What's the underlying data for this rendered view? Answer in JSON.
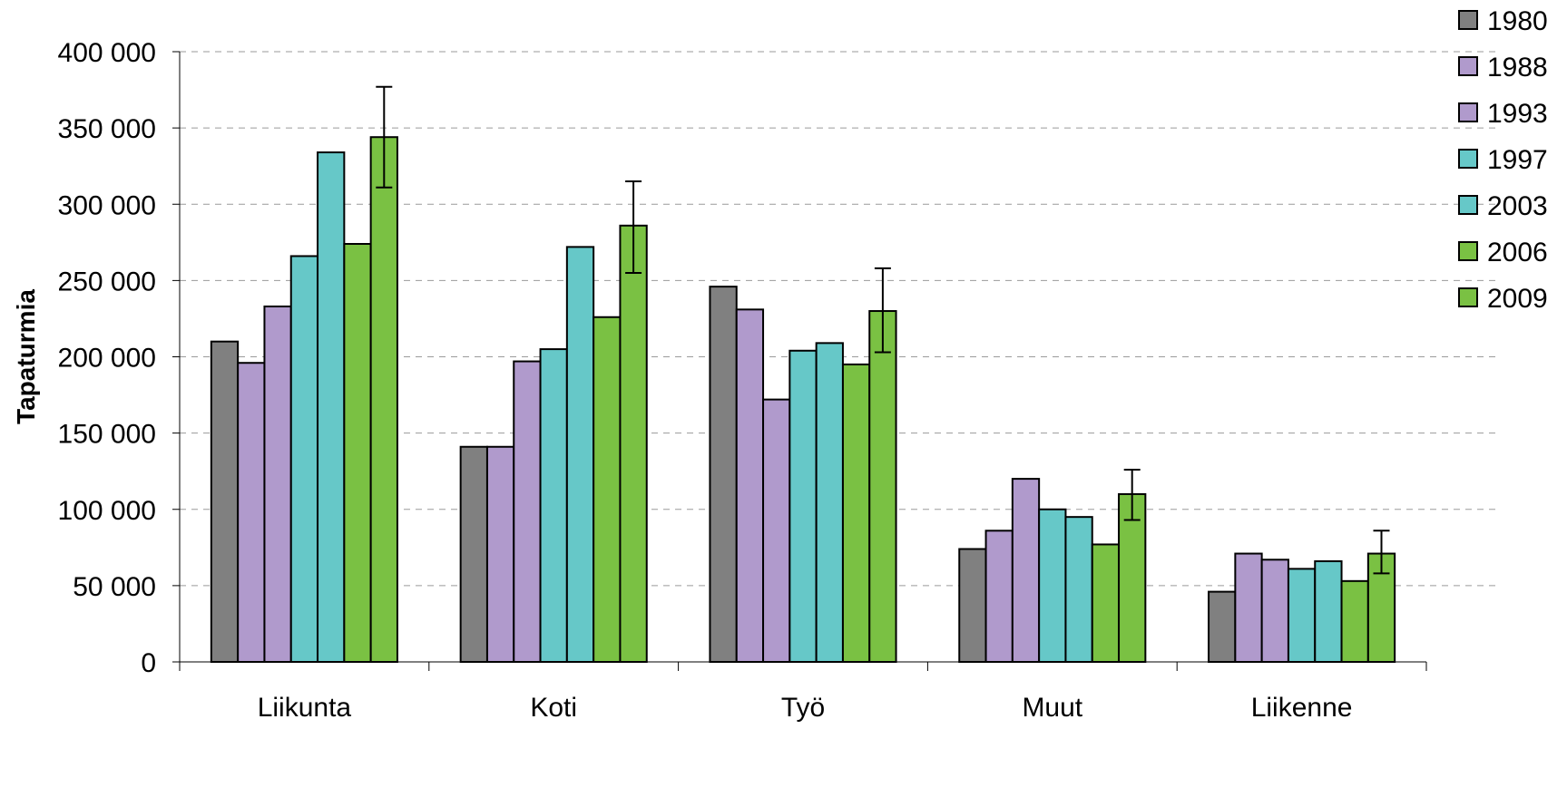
{
  "chart_data": {
    "type": "bar",
    "title": "",
    "xlabel": "",
    "ylabel": "Tapaturmia",
    "ylim": [
      0,
      400000
    ],
    "yticks": [
      0,
      50000,
      100000,
      150000,
      200000,
      250000,
      300000,
      350000,
      400000
    ],
    "ytick_labels": [
      "0",
      "50 000",
      "100 000",
      "150 000",
      "200 000",
      "250 000",
      "300 000",
      "350 000",
      "400 000"
    ],
    "grid": "horizontal dashed",
    "legend_position": "top-right",
    "categories": [
      "Liikunta",
      "Koti",
      "Työ",
      "Muut",
      "Liikenne"
    ],
    "series": [
      {
        "name": "1980",
        "color": "#808080",
        "values": [
          210000,
          141000,
          246000,
          74000,
          46000
        ]
      },
      {
        "name": "1988",
        "color": "#b09acc",
        "values": [
          196000,
          141000,
          231000,
          86000,
          71000
        ]
      },
      {
        "name": "1993",
        "color": "#b09acc",
        "values": [
          233000,
          197000,
          172000,
          120000,
          67000
        ]
      },
      {
        "name": "1997",
        "color": "#66c8c8",
        "values": [
          266000,
          205000,
          204000,
          100000,
          61000
        ]
      },
      {
        "name": "2003",
        "color": "#66c8c8",
        "values": [
          334000,
          272000,
          209000,
          95000,
          66000
        ]
      },
      {
        "name": "2006",
        "color": "#7ac143",
        "values": [
          274000,
          226000,
          195000,
          77000,
          53000
        ]
      },
      {
        "name": "2009",
        "color": "#7ac143",
        "values": [
          344000,
          286000,
          230000,
          110000,
          71000
        ],
        "error_low": [
          311000,
          255000,
          203000,
          93000,
          58000
        ],
        "error_high": [
          377000,
          315000,
          258000,
          126000,
          86000
        ]
      }
    ]
  }
}
